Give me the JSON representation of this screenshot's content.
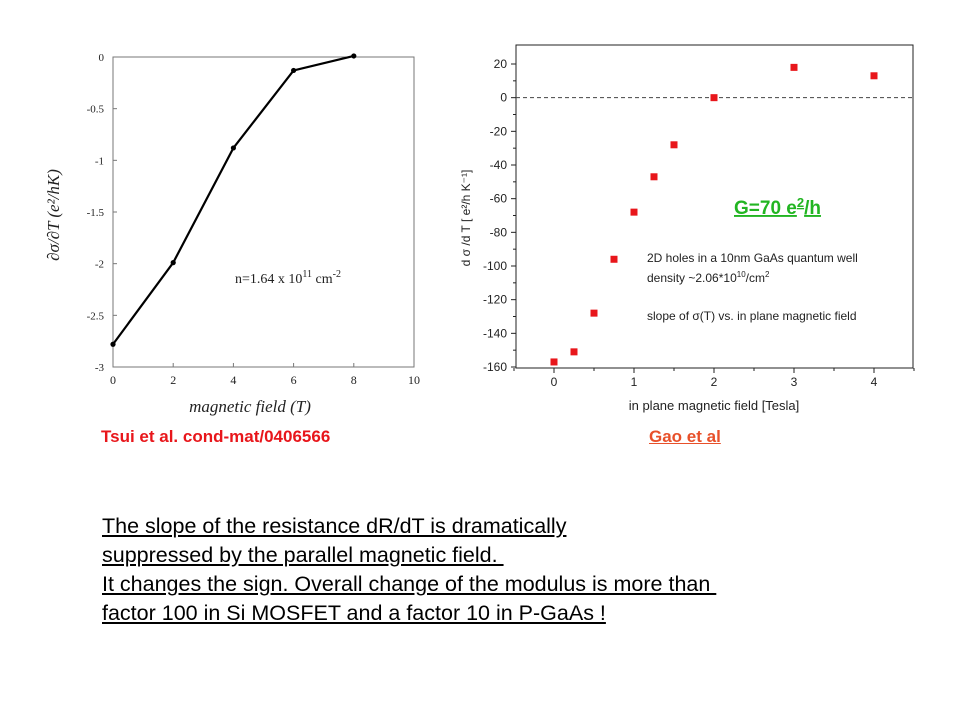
{
  "colors": {
    "left_line": "#000000",
    "right_marker": "#e8161b",
    "annotation_green": "#22b522",
    "caption_red": "#e8161b",
    "caption_orange": "#e8502a"
  },
  "chart_data": [
    {
      "type": "line",
      "xlabel": "magnetic field (T)",
      "ylabel": "∂σ/∂T  (e²/hK)",
      "xlim": [
        0,
        10
      ],
      "ylim": [
        -3,
        0
      ],
      "xticks": [
        "0",
        "2",
        "4",
        "6",
        "8",
        "10"
      ],
      "yticks": [
        "0",
        "-0.5",
        "-1",
        "-1.5",
        "-2",
        "-2.5",
        "-3"
      ],
      "x": [
        0,
        2,
        4,
        6,
        8
      ],
      "y": [
        -2.78,
        -1.99,
        -0.88,
        -0.13,
        0.01
      ],
      "annotation": "n=1.64 x 10¹¹ cm⁻²",
      "annotation_parts": {
        "base": "n=1.64 x 10",
        "exp": "11",
        "unit": " cm",
        "unit_exp": "-2"
      },
      "grid": false,
      "caption": "Tsui et al. cond-mat/0406566"
    },
    {
      "type": "scatter",
      "xlabel": "in plane magnetic field [Tesla]",
      "ylabel": "d σ /d T [ e²/h K⁻¹]",
      "xlim": [
        -0.5,
        4.5
      ],
      "ylim": [
        -160,
        25
      ],
      "xticks": [
        "0",
        "1",
        "2",
        "3",
        "4"
      ],
      "yticks": [
        "20",
        "0",
        "-20",
        "-40",
        "-60",
        "-80",
        "-100",
        "-120",
        "-140",
        "-160"
      ],
      "x": [
        0,
        0.25,
        0.5,
        0.75,
        1,
        1.25,
        1.5,
        2,
        3,
        4
      ],
      "y": [
        -157,
        -151,
        -128,
        -96,
        -68,
        -47,
        -28,
        0,
        18,
        13
      ],
      "reference_line_y": 0,
      "legend_lines": [
        "2D holes in a 10nm GaAs quantum well",
        "density ~2.06*10",
        "slope of σ(T) vs. in plane magnetic field"
      ],
      "density_exp": "10",
      "density_unit": "/cm",
      "density_unit_exp": "2",
      "annotation": "G=70 e²/h",
      "annotation_parts": {
        "base": "G=70 e",
        "exp": "2",
        "tail": "/h"
      },
      "grid": false,
      "caption": "Gao et al"
    }
  ],
  "body_text": [
    "The slope of the resistance dR/dT is dramatically",
    "suppressed by the parallel magnetic field. ",
    "It changes the sign. Overall change of the modulus is more than ",
    "factor 100 in Si MOSFET and a factor 10 in P-GaAs !"
  ]
}
